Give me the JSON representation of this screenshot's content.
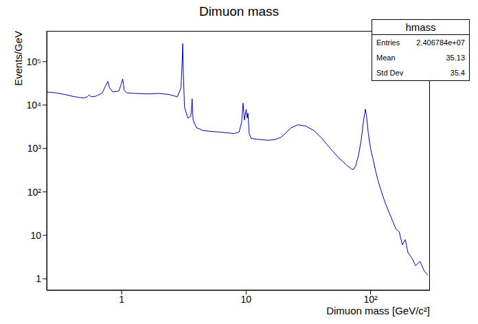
{
  "chart_data": {
    "type": "line",
    "title": "Dimuon mass",
    "x_label": "Dimuon mass [GeV/c²]",
    "y_label": "Events/GeV",
    "log": true,
    "grid": false,
    "color": "#000099",
    "line_style": "solid",
    "xlim": [
      0.25,
      300
    ],
    "ylim": [
      0.54,
      510000
    ],
    "xticks": [
      1,
      10,
      {
        "value": 100,
        "label": "10²"
      }
    ],
    "yticks": [
      1,
      10,
      {
        "value": 100,
        "label": "10²"
      },
      {
        "value": 1000,
        "label": "10³"
      },
      {
        "value": 10000,
        "label": "10⁴"
      },
      {
        "value": 100000,
        "label": "10⁵"
      }
    ],
    "x": [
      0.25,
      0.3,
      0.35,
      0.4,
      0.45,
      0.5,
      0.53,
      0.548,
      0.57,
      0.62,
      0.7,
      0.74,
      0.775,
      0.8,
      0.85,
      0.95,
      0.99,
      1.02,
      1.05,
      1.1,
      1.3,
      1.6,
      2.0,
      2.4,
      2.8,
      3.0,
      3.06,
      3.097,
      3.13,
      3.2,
      3.4,
      3.6,
      3.686,
      3.75,
      4.0,
      4.5,
      5,
      6,
      7,
      8,
      8.8,
      9.2,
      9.46,
      9.7,
      10.02,
      10.2,
      10.36,
      10.6,
      11,
      13,
      15,
      17,
      19,
      21,
      23,
      26,
      30,
      35,
      40,
      45,
      50,
      55,
      60,
      65,
      70,
      73,
      76,
      80,
      84,
      88,
      91,
      93,
      96,
      100,
      105,
      110,
      115,
      120,
      130,
      140,
      150,
      160,
      170,
      180,
      190,
      200,
      215,
      230,
      250,
      270,
      290
    ],
    "values": [
      20000,
      19000,
      17500,
      16000,
      15000,
      14500,
      15500,
      17000,
      15500,
      16000,
      19000,
      27000,
      35000,
      25000,
      20000,
      21000,
      30000,
      40000,
      22000,
      19000,
      18500,
      18000,
      18500,
      17500,
      15500,
      25000,
      90000,
      260000,
      60000,
      9000,
      5000,
      5500,
      14000,
      4500,
      3000,
      2600,
      2500,
      2400,
      2300,
      2200,
      2400,
      4000,
      11000,
      4500,
      8000,
      5000,
      6500,
      2200,
      1700,
      1600,
      1550,
      1600,
      1800,
      2300,
      3000,
      3500,
      3300,
      2600,
      1800,
      1200,
      850,
      620,
      500,
      400,
      340,
      330,
      400,
      700,
      1500,
      4500,
      8000,
      5500,
      2200,
      1000,
      550,
      300,
      180,
      120,
      60,
      35,
      22,
      14,
      12,
      6,
      8,
      4,
      3,
      2,
      2.5,
      1.5,
      1.2
    ],
    "stats": {
      "name": "hmass",
      "rows": [
        {
          "label": "Entries",
          "value": {
            "value": 24067840,
            "label": "2.406784e+07"
          }
        },
        {
          "label": "Mean",
          "value": 35.13
        },
        {
          "label": "Std Dev",
          "value": 35.4
        }
      ]
    }
  }
}
